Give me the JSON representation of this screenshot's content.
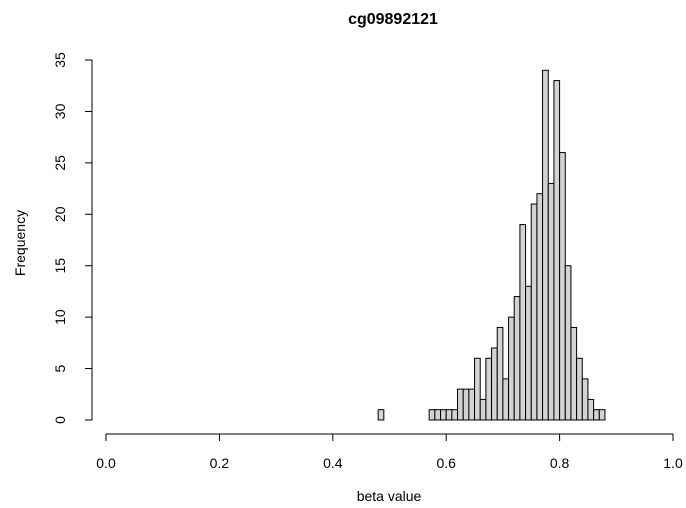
{
  "chart_data": {
    "type": "bar",
    "title": "cg09892121",
    "xlabel": "beta value",
    "ylabel": "Frequency",
    "xlim": [
      0,
      1
    ],
    "ylim": [
      0,
      35
    ],
    "x_ticks": [
      "0.0",
      "0.2",
      "0.4",
      "0.6",
      "0.8",
      "1.0"
    ],
    "y_ticks": [
      "0",
      "5",
      "10",
      "15",
      "20",
      "25",
      "30",
      "35"
    ],
    "bin_width": 0.01,
    "bin_start": 0.48,
    "values": [
      1,
      0,
      0,
      0,
      0,
      0,
      0,
      0,
      0,
      1,
      1,
      1,
      1,
      1,
      3,
      3,
      3,
      6,
      2,
      6,
      7,
      9,
      4,
      10,
      12,
      19,
      13,
      21,
      22,
      34,
      23,
      33,
      26,
      15,
      9,
      6,
      4,
      2,
      1,
      1
    ],
    "bar_fill": "#d3d3d3",
    "bar_stroke": "#000000",
    "grid": false
  }
}
